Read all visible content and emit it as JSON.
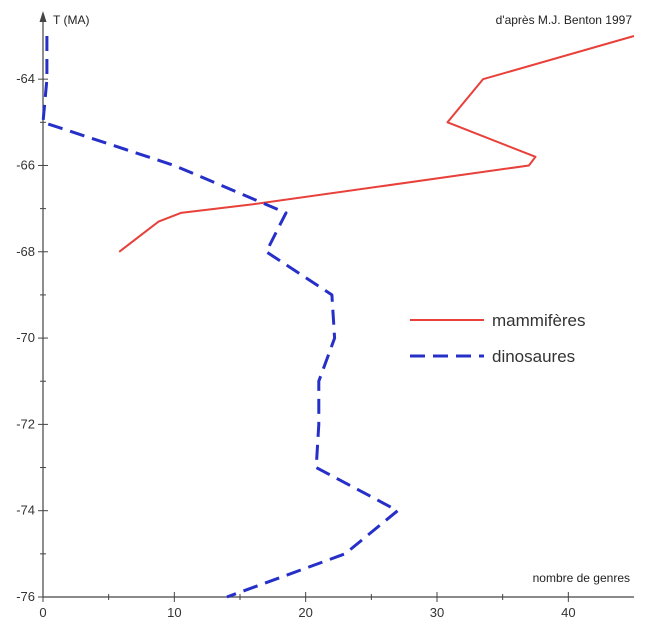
{
  "chart_data": {
    "type": "line",
    "credit": "d'après M.J. Benton 1997",
    "xlabel": "nombre de genres",
    "ylabel": "T (MA)",
    "xlim": [
      0,
      45
    ],
    "ylim": [
      -76,
      -63
    ],
    "xticks": [
      "0",
      "10",
      "20",
      "30",
      "40"
    ],
    "yticks": [
      "-64",
      "-66",
      "-68",
      "-70",
      "-72",
      "-74",
      "-76"
    ],
    "grid": false,
    "legend_position": "right-middle",
    "series": [
      {
        "name": "mammifères",
        "color": "#e8403a",
        "style": "solid",
        "points": [
          [
            45,
            -63
          ],
          [
            33.5,
            -64
          ],
          [
            30.8,
            -65
          ],
          [
            37.5,
            -65.8
          ],
          [
            37,
            -66
          ],
          [
            16,
            -66.9
          ],
          [
            10.5,
            -67.1
          ],
          [
            8.8,
            -67.3
          ],
          [
            5.8,
            -68
          ]
        ]
      },
      {
        "name": "dinosaures",
        "color": "#2630c8",
        "style": "dashed",
        "points": [
          [
            0.3,
            -63
          ],
          [
            0.3,
            -64
          ],
          [
            0,
            -65
          ],
          [
            10,
            -66
          ],
          [
            18.5,
            -67.1
          ],
          [
            17,
            -68
          ],
          [
            22,
            -69
          ],
          [
            22.2,
            -70
          ],
          [
            21,
            -71
          ],
          [
            21,
            -72
          ],
          [
            20.8,
            -73
          ],
          [
            27,
            -74
          ],
          [
            23,
            -75
          ],
          [
            14,
            -76
          ]
        ]
      }
    ]
  }
}
